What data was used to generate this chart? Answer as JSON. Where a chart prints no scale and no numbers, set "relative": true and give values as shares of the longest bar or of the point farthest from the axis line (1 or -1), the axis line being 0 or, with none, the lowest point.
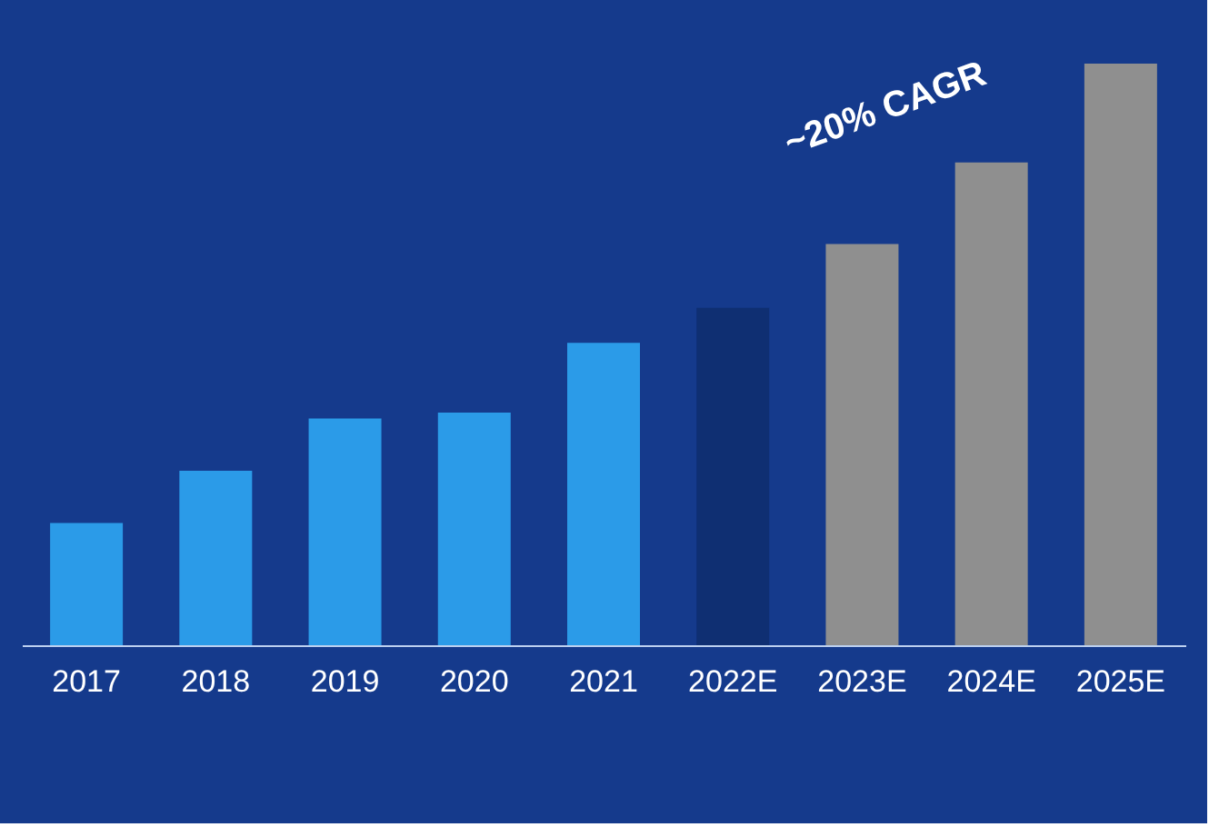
{
  "chart_data": {
    "type": "bar",
    "relative": true,
    "categories": [
      "2017",
      "2018",
      "2019",
      "2020",
      "2021",
      "2022E",
      "2023E",
      "2024E",
      "2025E"
    ],
    "values": [
      0.21,
      0.3,
      0.39,
      0.4,
      0.52,
      0.58,
      0.69,
      0.83,
      1.0
    ],
    "colors": [
      "#2b9be8",
      "#2b9be8",
      "#2b9be8",
      "#2b9be8",
      "#2b9be8",
      "#0f2f72",
      "#8f8f8f",
      "#8f8f8f",
      "#8f8f8f"
    ],
    "annotations": [
      "~20% CAGR"
    ],
    "grid": false
  }
}
